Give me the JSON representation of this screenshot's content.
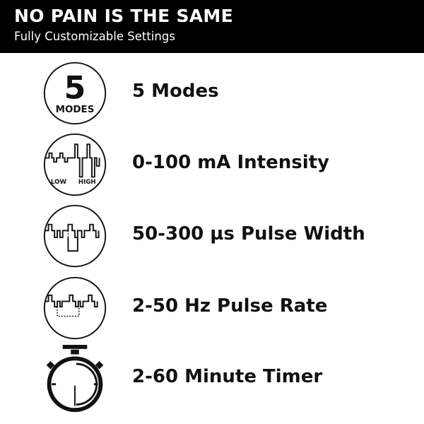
{
  "header": {
    "title": "NO PAIN IS THE SAME",
    "subtitle": "Fully Customizable Settings"
  },
  "features": [
    {
      "icon": "five-modes-icon",
      "icon_number": "5",
      "icon_text": "MODES",
      "label": "5 Modes"
    },
    {
      "icon": "intensity-wave-icon",
      "icon_low": "LOW",
      "icon_high": "HIGH",
      "label": "0-100 mA Intensity"
    },
    {
      "icon": "pulse-width-wave-icon",
      "label": "50-300 µs Pulse Width"
    },
    {
      "icon": "pulse-rate-wave-icon",
      "label": "2-50 Hz Pulse Rate"
    },
    {
      "icon": "stopwatch-icon",
      "label": "2-60 Minute Timer"
    }
  ]
}
